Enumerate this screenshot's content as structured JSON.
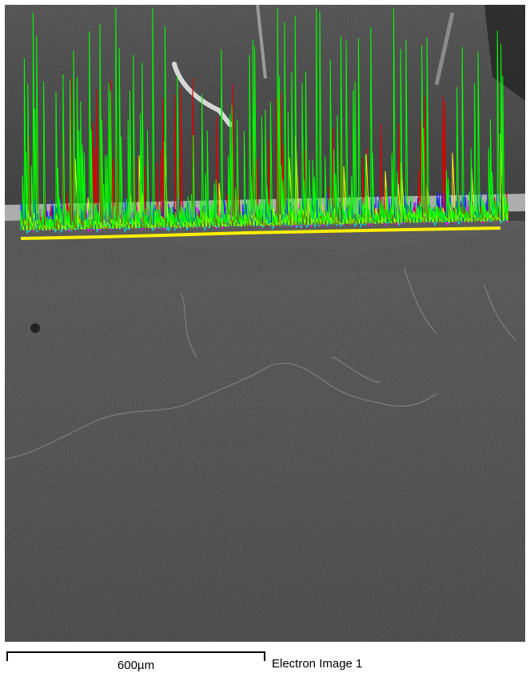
{
  "image": {
    "type": "SEM micrograph with EDS line-scan overlay",
    "line_scan_colors": [
      "#00ff00",
      "#dd0000",
      "#2020ff",
      "#ff00ff",
      "#00e0e0",
      "#ffff00"
    ],
    "line_color": "#ffee00"
  },
  "scale_bar": {
    "label": "600µm"
  },
  "caption": "Electron Image 1"
}
